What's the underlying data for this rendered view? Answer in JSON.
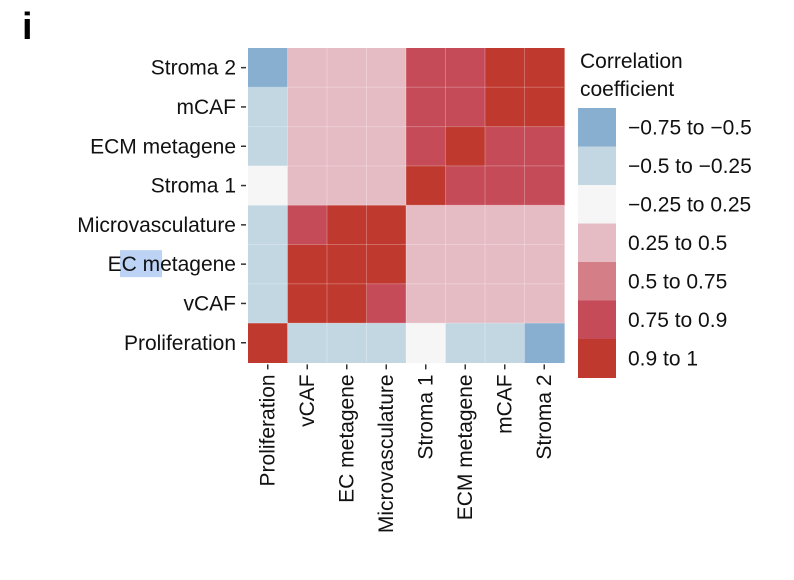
{
  "panel_label": "i",
  "colors": {
    "-0.75 to -0.5": "#88afd0",
    "-0.5 to -0.25": "#c3d7e3",
    "-0.25 to 0.25": "#f6f6f6",
    "0.25 to 0.5": "#e6bcc4",
    "0.5 to 0.75": "#d47f88",
    "0.75 to 0.9": "#c64b58",
    "0.9 to 1": "#c0392f"
  },
  "chart_data": {
    "type": "heatmap",
    "title": "",
    "xlabel": "",
    "ylabel": "",
    "x_categories": [
      "Proliferation",
      "vCAF",
      "EC metagene",
      "Microvasculature",
      "Stroma 1",
      "ECM metagene",
      "mCAF",
      "Stroma 2"
    ],
    "y_categories_top_to_bottom": [
      "Stroma 2",
      "mCAF",
      "ECM metagene",
      "Stroma 1",
      "Microvasculature",
      "EC metagene",
      "vCAF",
      "Proliferation"
    ],
    "legend": {
      "title_lines": [
        "Correlation",
        "coefficient"
      ],
      "entries": [
        "−0.75 to −0.5",
        "−0.5 to −0.25",
        "−0.25 to 0.25",
        "0.25 to 0.5",
        "0.5 to 0.75",
        "0.75 to 0.9",
        "0.9 to 1"
      ],
      "keys": [
        "-0.75 to -0.5",
        "-0.5 to -0.25",
        "-0.25 to 0.25",
        "0.25 to 0.5",
        "0.5 to 0.75",
        "0.75 to 0.9",
        "0.9 to 1"
      ],
      "placement": "right"
    },
    "cells_rows_top_to_bottom": [
      [
        "-0.75 to -0.5",
        "0.25 to 0.5",
        "0.25 to 0.5",
        "0.25 to 0.5",
        "0.75 to 0.9",
        "0.75 to 0.9",
        "0.9 to 1",
        "0.9 to 1"
      ],
      [
        "-0.5 to -0.25",
        "0.25 to 0.5",
        "0.25 to 0.5",
        "0.25 to 0.5",
        "0.75 to 0.9",
        "0.75 to 0.9",
        "0.9 to 1",
        "0.9 to 1"
      ],
      [
        "-0.5 to -0.25",
        "0.25 to 0.5",
        "0.25 to 0.5",
        "0.25 to 0.5",
        "0.75 to 0.9",
        "0.9 to 1",
        "0.75 to 0.9",
        "0.75 to 0.9"
      ],
      [
        "-0.25 to 0.25",
        "0.25 to 0.5",
        "0.25 to 0.5",
        "0.25 to 0.5",
        "0.9 to 1",
        "0.75 to 0.9",
        "0.75 to 0.9",
        "0.75 to 0.9"
      ],
      [
        "-0.5 to -0.25",
        "0.75 to 0.9",
        "0.9 to 1",
        "0.9 to 1",
        "0.25 to 0.5",
        "0.25 to 0.5",
        "0.25 to 0.5",
        "0.25 to 0.5"
      ],
      [
        "-0.5 to -0.25",
        "0.9 to 1",
        "0.9 to 1",
        "0.9 to 1",
        "0.25 to 0.5",
        "0.25 to 0.5",
        "0.25 to 0.5",
        "0.25 to 0.5"
      ],
      [
        "-0.5 to -0.25",
        "0.9 to 1",
        "0.9 to 1",
        "0.75 to 0.9",
        "0.25 to 0.5",
        "0.25 to 0.5",
        "0.25 to 0.5",
        "0.25 to 0.5"
      ],
      [
        "0.9 to 1",
        "-0.5 to -0.25",
        "-0.5 to -0.25",
        "-0.5 to -0.25",
        "-0.25 to 0.25",
        "-0.5 to -0.25",
        "-0.5 to -0.25",
        "-0.75 to -0.5"
      ]
    ]
  }
}
